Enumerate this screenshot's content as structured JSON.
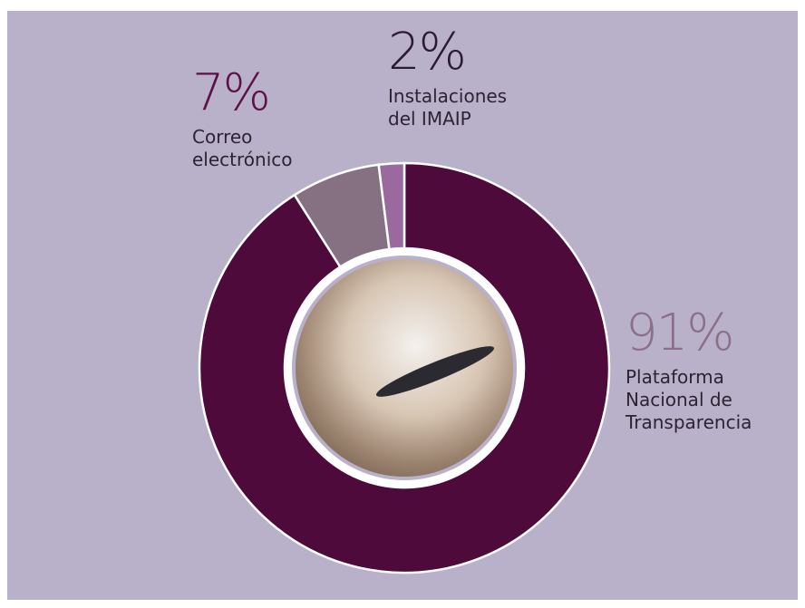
{
  "chart_data": {
    "type": "donut",
    "categories": [
      "Plataforma Nacional de Transparencia",
      "Correo electrónico",
      "Instalaciones del IMAIP"
    ],
    "values": [
      91,
      7,
      2
    ],
    "value_labels": [
      "91%",
      "7%",
      "2%"
    ],
    "colors": [
      "#4d0a3b",
      "#857181",
      "#9a6a9e"
    ]
  }
}
